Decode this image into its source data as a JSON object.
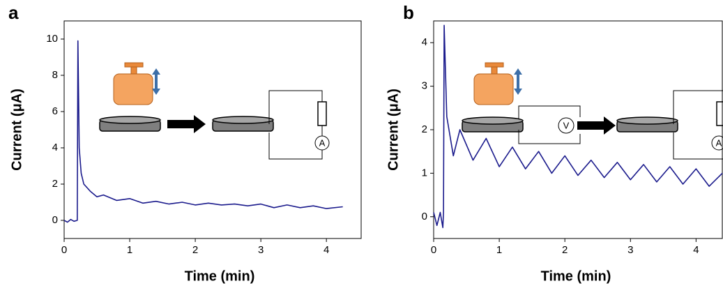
{
  "chart_data": [
    {
      "type": "line",
      "panel": "a",
      "x_label": "Time (min)",
      "y_label": "Current (μA)",
      "color": "#1a1a8c",
      "xlim": [
        0,
        4.53
      ],
      "xticks": [
        0,
        1,
        2,
        3,
        4
      ],
      "ylim": [
        -1,
        11
      ],
      "yticks": [
        0,
        2,
        4,
        6,
        8,
        10
      ],
      "x": [
        0,
        0.05,
        0.1,
        0.15,
        0.2,
        0.21,
        0.23,
        0.26,
        0.3,
        0.4,
        0.5,
        0.6,
        0.8,
        1.0,
        1.2,
        1.4,
        1.6,
        1.8,
        2.0,
        2.2,
        2.4,
        2.6,
        2.8,
        3.0,
        3.2,
        3.4,
        3.6,
        3.8,
        4.0,
        4.25
      ],
      "values": [
        0,
        -0.1,
        0.05,
        -0.05,
        0,
        9.9,
        4.0,
        2.6,
        2.0,
        1.6,
        1.3,
        1.4,
        1.1,
        1.2,
        0.95,
        1.05,
        0.9,
        1.0,
        0.85,
        0.95,
        0.85,
        0.9,
        0.8,
        0.9,
        0.7,
        0.85,
        0.7,
        0.8,
        0.65,
        0.75
      ],
      "meters": [
        "A"
      ]
    },
    {
      "type": "line",
      "panel": "b",
      "x_label": "Time (min)",
      "y_label": "Current (μA)",
      "color": "#1a1a8c",
      "xlim": [
        0,
        4.4
      ],
      "xticks": [
        0,
        1,
        2,
        3,
        4
      ],
      "ylim": [
        -0.5,
        4.5
      ],
      "yticks": [
        0,
        1,
        2,
        3,
        4
      ],
      "x": [
        0,
        0.05,
        0.1,
        0.14,
        0.15,
        0.16,
        0.2,
        0.3,
        0.4,
        0.6,
        0.8,
        1.0,
        1.2,
        1.4,
        1.6,
        1.8,
        2.0,
        2.2,
        2.4,
        2.6,
        2.8,
        3.0,
        3.2,
        3.4,
        3.6,
        3.8,
        4.0,
        4.2,
        4.4
      ],
      "values": [
        0.1,
        -0.2,
        0.1,
        -0.25,
        0.1,
        4.4,
        2.3,
        1.4,
        2.0,
        1.3,
        1.8,
        1.15,
        1.6,
        1.1,
        1.5,
        1.0,
        1.4,
        0.95,
        1.3,
        0.9,
        1.25,
        0.85,
        1.2,
        0.8,
        1.15,
        0.75,
        1.1,
        0.7,
        1.0
      ],
      "meters": [
        "V",
        "A"
      ]
    }
  ]
}
